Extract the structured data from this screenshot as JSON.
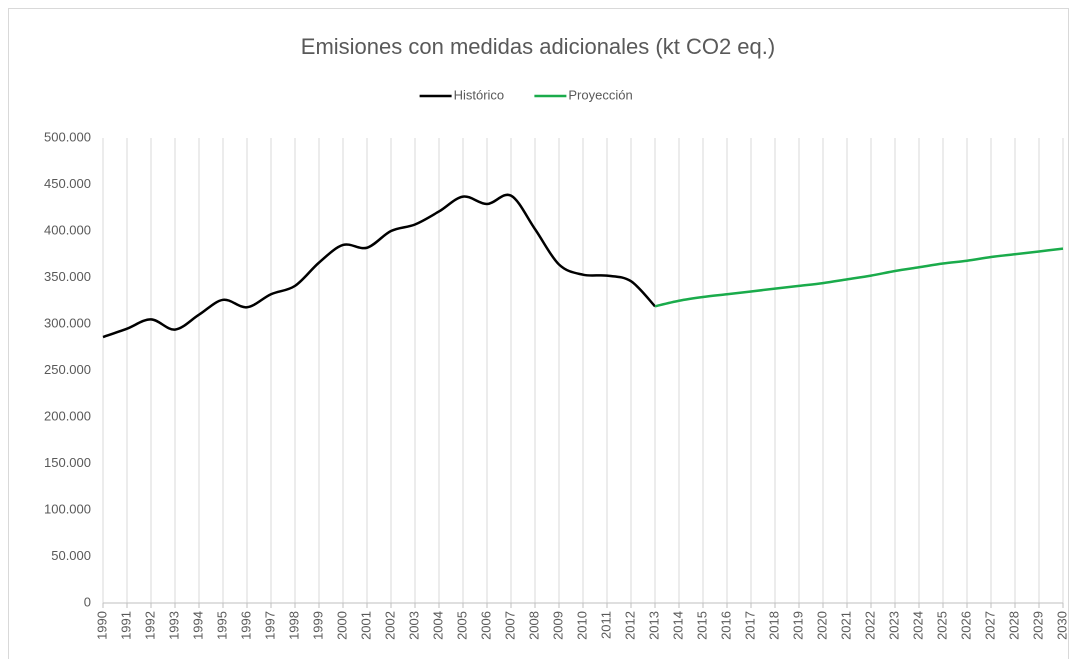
{
  "chart_data": {
    "type": "line",
    "title": "Emisiones con medidas adicionales (kt CO2 eq.)",
    "categories": [
      "1990",
      "1991",
      "1992",
      "1993",
      "1994",
      "1995",
      "1996",
      "1997",
      "1998",
      "1999",
      "2000",
      "2001",
      "2002",
      "2003",
      "2004",
      "2005",
      "2006",
      "2007",
      "2008",
      "2009",
      "2010",
      "2011",
      "2012",
      "2013",
      "2014",
      "2015",
      "2016",
      "2017",
      "2018",
      "2019",
      "2020",
      "2021",
      "2022",
      "2023",
      "2024",
      "2025",
      "2026",
      "2027",
      "2028",
      "2029",
      "2030"
    ],
    "series": [
      {
        "name": "Histórico",
        "color": "#000000",
        "values": [
          286000,
          295000,
          305000,
          294000,
          310000,
          326000,
          318000,
          332000,
          341000,
          366000,
          385000,
          382000,
          400000,
          407000,
          421000,
          437000,
          429000,
          438000,
          402000,
          364000,
          353000,
          352000,
          346000,
          319000,
          null,
          null,
          null,
          null,
          null,
          null,
          null,
          null,
          null,
          null,
          null,
          null,
          null,
          null,
          null,
          null,
          null
        ]
      },
      {
        "name": "Proyección",
        "color": "#1aab4b",
        "values": [
          null,
          null,
          null,
          null,
          null,
          null,
          null,
          null,
          null,
          null,
          null,
          null,
          null,
          null,
          null,
          null,
          null,
          null,
          null,
          null,
          null,
          null,
          null,
          319000,
          325000,
          329000,
          332000,
          335000,
          338000,
          341000,
          344000,
          348000,
          352000,
          357000,
          361000,
          365000,
          368000,
          372000,
          375000,
          378000,
          381000
        ]
      }
    ],
    "ylim": [
      0,
      500000
    ],
    "yticks": [
      0,
      {
        "value": 50000,
        "label": "50.000"
      },
      {
        "value": 100000,
        "label": "100.000"
      },
      {
        "value": 150000,
        "label": "150.000"
      },
      {
        "value": 200000,
        "label": "200.000"
      },
      {
        "value": 250000,
        "label": "250.000"
      },
      {
        "value": 300000,
        "label": "300.000"
      },
      {
        "value": 350000,
        "label": "350.000"
      },
      {
        "value": 400000,
        "label": "400.000"
      },
      {
        "value": 450000,
        "label": "450.000"
      },
      {
        "value": 500000,
        "label": "500.000"
      }
    ],
    "grid": "x",
    "legend": "top",
    "smooth": true
  }
}
